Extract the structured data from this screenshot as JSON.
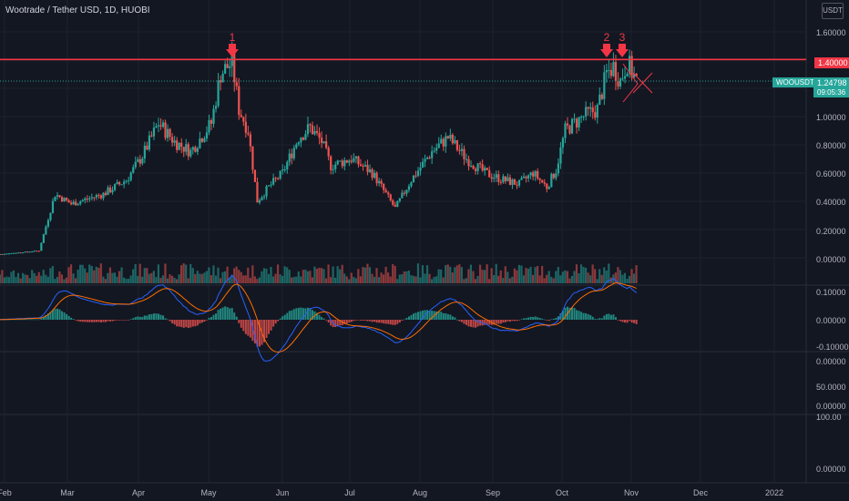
{
  "header": {
    "title": "Wootrade / Tether USD, 1D, HUOBI",
    "scale_label": "USDT"
  },
  "price_tags": {
    "resistance": "1.40000",
    "symbol": "WOOUSDT",
    "last_price": "1.24798",
    "countdown": "09:05:36"
  },
  "annotations": [
    "1",
    "2",
    "3"
  ],
  "axis": {
    "price_ticks": [
      "1.60000",
      "1.00000",
      "0.80000",
      "0.60000",
      "0.40000",
      "0.20000",
      "0.00000"
    ],
    "macd_ticks": [
      "0.10000",
      "0.00000",
      "-0.10000"
    ],
    "pane3_ticks": [
      "0.00000",
      "50.0000",
      "0.00000"
    ],
    "pane4_ticks": [
      "100.00",
      "0.00000"
    ],
    "months": [
      "Feb",
      "Mar",
      "Apr",
      "May",
      "Jun",
      "Jul",
      "Aug",
      "Sep",
      "Oct",
      "Nov",
      "Dec",
      "2022"
    ]
  },
  "colors": {
    "background": "#131722",
    "up": "#26a69a",
    "down": "#ef5350",
    "annotation": "#f23645",
    "macd_line": "#2962ff",
    "signal_line": "#ff6d00",
    "price_tag": "#26a69a"
  },
  "chart_data": {
    "type": "candlestick",
    "symbol": "WOOUSDT",
    "interval": "1D",
    "exchange": "HUOBI",
    "resistance_level": 1.4,
    "last_price": 1.24798,
    "price_anchors": [
      {
        "date": "2021-01-25",
        "price": 0.02
      },
      {
        "date": "2021-02-15",
        "price": 0.05
      },
      {
        "date": "2021-02-22",
        "price": 0.45
      },
      {
        "date": "2021-03-01",
        "price": 0.38
      },
      {
        "date": "2021-03-15",
        "price": 0.45
      },
      {
        "date": "2021-03-25",
        "price": 0.55
      },
      {
        "date": "2021-04-01",
        "price": 0.72
      },
      {
        "date": "2021-04-08",
        "price": 0.95
      },
      {
        "date": "2021-04-15",
        "price": 0.82
      },
      {
        "date": "2021-04-22",
        "price": 0.75
      },
      {
        "date": "2021-05-01",
        "price": 0.95
      },
      {
        "date": "2021-05-05",
        "price": 1.3
      },
      {
        "date": "2021-05-10",
        "price": 1.38
      },
      {
        "date": "2021-05-13",
        "price": 1.05
      },
      {
        "date": "2021-05-17",
        "price": 0.9
      },
      {
        "date": "2021-05-21",
        "price": 0.4
      },
      {
        "date": "2021-05-26",
        "price": 0.5
      },
      {
        "date": "2021-06-01",
        "price": 0.6
      },
      {
        "date": "2021-06-08",
        "price": 0.85
      },
      {
        "date": "2021-06-13",
        "price": 0.92
      },
      {
        "date": "2021-06-18",
        "price": 0.82
      },
      {
        "date": "2021-06-22",
        "price": 0.65
      },
      {
        "date": "2021-07-01",
        "price": 0.7
      },
      {
        "date": "2021-07-10",
        "price": 0.6
      },
      {
        "date": "2021-07-20",
        "price": 0.35
      },
      {
        "date": "2021-07-27",
        "price": 0.55
      },
      {
        "date": "2021-08-05",
        "price": 0.75
      },
      {
        "date": "2021-08-12",
        "price": 0.85
      },
      {
        "date": "2021-08-20",
        "price": 0.7
      },
      {
        "date": "2021-08-28",
        "price": 0.6
      },
      {
        "date": "2021-09-05",
        "price": 0.55
      },
      {
        "date": "2021-09-12",
        "price": 0.52
      },
      {
        "date": "2021-09-18",
        "price": 0.6
      },
      {
        "date": "2021-09-24",
        "price": 0.5
      },
      {
        "date": "2021-09-28",
        "price": 0.62
      },
      {
        "date": "2021-10-02",
        "price": 0.9
      },
      {
        "date": "2021-10-10",
        "price": 1.0
      },
      {
        "date": "2021-10-16",
        "price": 1.05
      },
      {
        "date": "2021-10-20",
        "price": 1.3
      },
      {
        "date": "2021-10-23",
        "price": 1.35
      },
      {
        "date": "2021-10-26",
        "price": 1.25
      },
      {
        "date": "2021-10-29",
        "price": 1.38
      },
      {
        "date": "2021-11-02",
        "price": 1.25
      }
    ],
    "volume_range": [
      0,
      1
    ],
    "macd_range": [
      -0.1,
      0.1
    ]
  }
}
